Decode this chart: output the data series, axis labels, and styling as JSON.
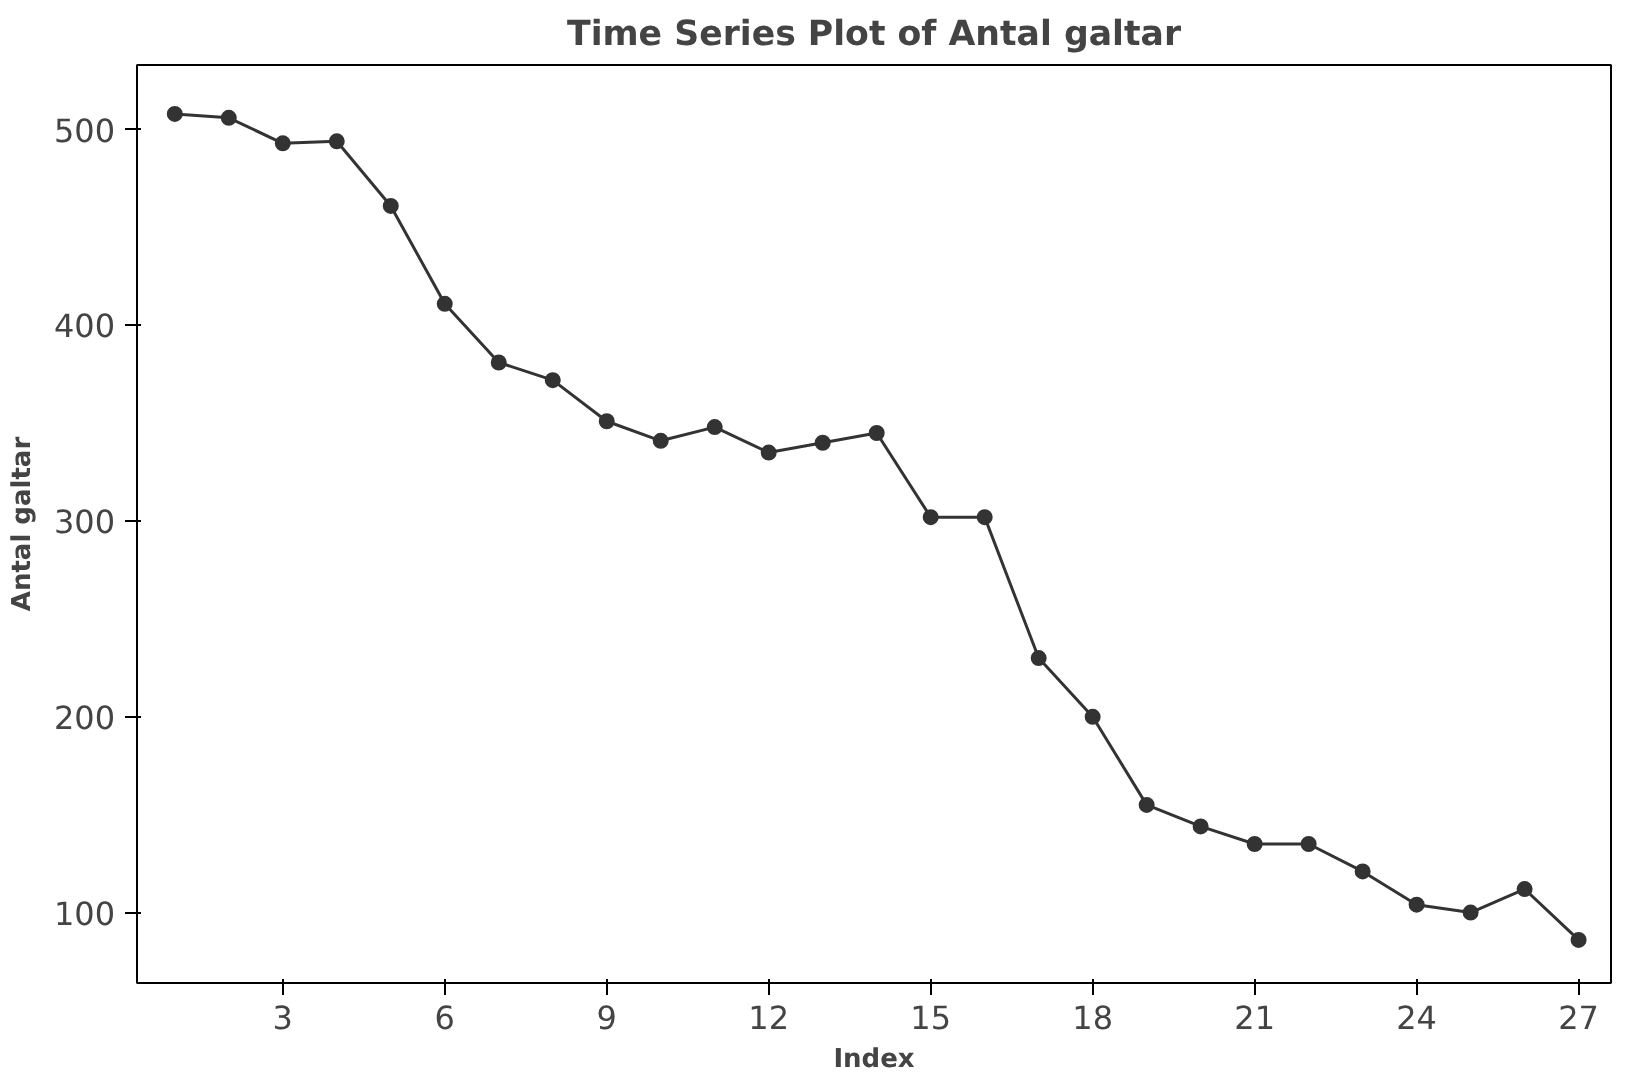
{
  "chart_data": {
    "type": "line",
    "title": "Time Series Plot of Antal galtar",
    "xlabel": "Index",
    "ylabel": "Antal galtar",
    "x": [
      1,
      2,
      3,
      4,
      5,
      6,
      7,
      8,
      9,
      10,
      11,
      12,
      13,
      14,
      15,
      16,
      17,
      18,
      19,
      20,
      21,
      22,
      23,
      24,
      25,
      26,
      27
    ],
    "series": [
      {
        "color": "#333333",
        "values": [
          508,
          506,
          493,
          494,
          461,
          411,
          381,
          372,
          351,
          341,
          348,
          335,
          340,
          345,
          302,
          302,
          230,
          200,
          155,
          144,
          135,
          135,
          121,
          104,
          100,
          112,
          86
        ]
      }
    ],
    "xlim": [
      0.3,
      27.6
    ],
    "ylim": [
      64,
      533
    ],
    "xticks": [
      3,
      6,
      9,
      12,
      15,
      18,
      21,
      24,
      27
    ],
    "yticks": [
      100,
      200,
      300,
      400,
      500
    ],
    "grid": false,
    "marker": "circle",
    "line_style": "solid"
  }
}
